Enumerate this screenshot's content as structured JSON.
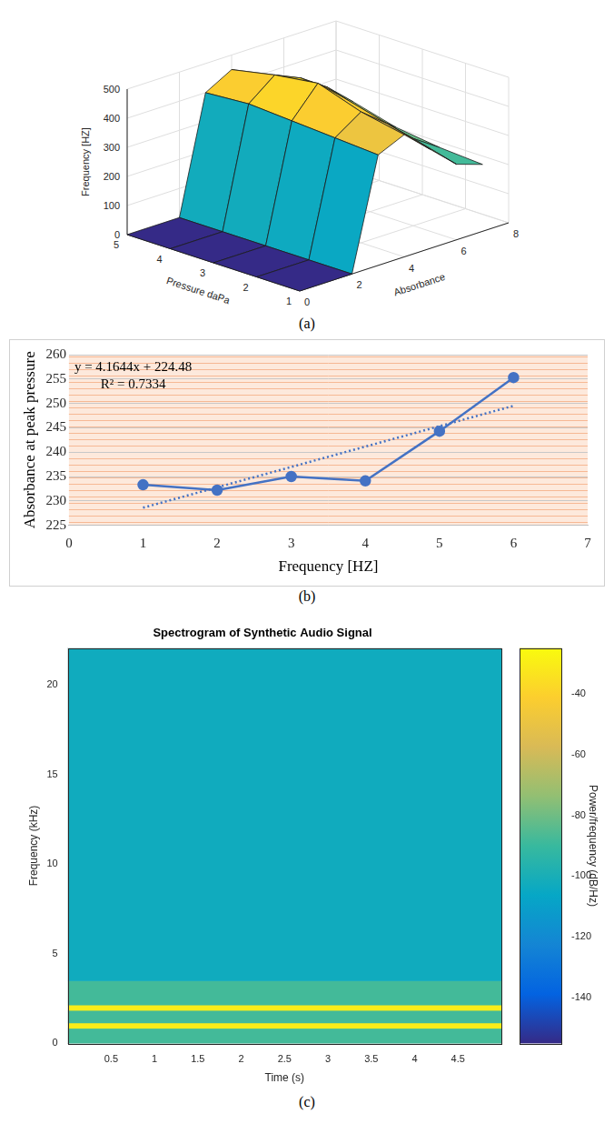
{
  "chart_data": [
    {
      "type": "surface",
      "panel": "(a)",
      "x_label": "Absorbance",
      "y_label": "Pressure daPa",
      "z_label": "Frequency [HZ]",
      "x": [
        0,
        2,
        3,
        4,
        5,
        6,
        7
      ],
      "y": [
        1,
        2,
        3,
        4,
        5
      ],
      "z": [
        [
          0,
          0,
          380,
          420,
          340,
          260,
          230
        ],
        [
          0,
          0,
          390,
          450,
          380,
          300,
          240
        ],
        [
          0,
          0,
          400,
          500,
          420,
          330,
          260
        ],
        [
          0,
          0,
          410,
          480,
          440,
          380,
          300
        ],
        [
          0,
          0,
          400,
          450,
          400,
          350,
          280
        ]
      ],
      "xlim": [
        0,
        8
      ],
      "xticks": [
        0,
        2,
        4,
        6,
        8
      ],
      "ylim": [
        1,
        5
      ],
      "yticks": [
        1,
        2,
        3,
        4,
        5
      ],
      "zlim": [
        0,
        500
      ],
      "zticks": [
        0,
        100,
        200,
        300,
        400,
        500
      ],
      "grid": true
    },
    {
      "type": "line",
      "panel": "(b)",
      "x_label": "Frequency [HZ]",
      "y_label": "Absorbance at peak pressure",
      "x": [
        1,
        2,
        3,
        4,
        5,
        6
      ],
      "values": [
        233.3,
        232.2,
        235.0,
        234.1,
        244.3,
        255.3
      ],
      "color": "#4472c4",
      "marker": "circle",
      "trend_line": {
        "x": [
          1,
          6
        ],
        "values": [
          228.6,
          249.5
        ],
        "color": "#4472c4",
        "line_style": "dotted"
      },
      "annotations": [
        "y = 4.1644x + 224.48",
        "R² = 0.7334"
      ],
      "xlim": [
        0,
        7
      ],
      "xticks": [
        0,
        1,
        2,
        3,
        4,
        5,
        6,
        7
      ],
      "ylim": [
        225,
        260
      ],
      "yticks": [
        225,
        230,
        235,
        240,
        245,
        250,
        255,
        260
      ],
      "grid": true
    },
    {
      "type": "spectrogram",
      "panel": "(c)",
      "title": "Spectrogram of Synthetic Audio Signal",
      "x_label": "Time (s)",
      "y_label": "Frequency (kHz)",
      "xlim": [
        0,
        5
      ],
      "xticks": [
        0.5,
        1,
        1.5,
        2,
        2.5,
        3,
        3.5,
        4,
        4.5
      ],
      "ylim": [
        0,
        22.05
      ],
      "yticks": [
        0,
        5,
        10,
        15,
        20
      ],
      "bands": [
        {
          "from": 0,
          "to": 0.85,
          "power": -88
        },
        {
          "from": 0.85,
          "to": 1.15,
          "power": -30
        },
        {
          "from": 1.15,
          "to": 1.85,
          "power": -88
        },
        {
          "from": 1.85,
          "to": 2.15,
          "power": -30
        },
        {
          "from": 2.15,
          "to": 3.5,
          "power": -88
        },
        {
          "from": 3.5,
          "to": 22.05,
          "power": -103
        }
      ],
      "colorbar": {
        "label": "Power/frequency (dB/Hz)",
        "range": [
          -155,
          -25
        ],
        "ticks": [
          -140,
          -120,
          -100,
          -80,
          -60,
          -40
        ]
      },
      "grid": false
    }
  ]
}
